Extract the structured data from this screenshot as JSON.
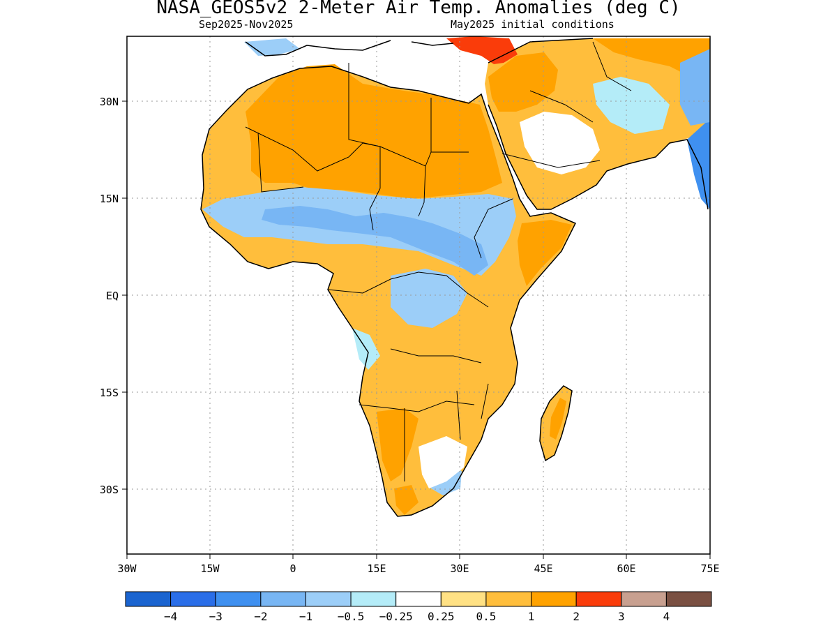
{
  "header": {
    "title": "NASA_GEOS5v2 2-Meter Air Temp. Anomalies (deg C)",
    "period": "Sep2025-Nov2025",
    "init": "May2025 initial conditions"
  },
  "map": {
    "lon_range": [
      -30,
      75
    ],
    "lat_range": [
      -40,
      40
    ],
    "lon_ticks": [
      "30W",
      "15W",
      "0",
      "15E",
      "30E",
      "45E",
      "60E",
      "75E"
    ],
    "lat_ticks": [
      "30N",
      "15N",
      "EQ",
      "15S",
      "30S"
    ],
    "grid": true,
    "colors": {
      "c_m4": "#1a64d0",
      "c_m3": "#2a6ee8",
      "c_m2": "#3f90f0",
      "c_m1": "#78b6f4",
      "c_m05": "#9ccef8",
      "c_m025": "#b4ecf8",
      "c_0": "#ffffff",
      "c_025": "#ffe184",
      "c_05": "#ffbe3c",
      "c_1": "#ffa200",
      "c_2": "#fa3c0a",
      "c_3": "#c8a090",
      "c_4": "#7a5042"
    }
  },
  "colorbar": {
    "colors": [
      "#1a64d0",
      "#2a6ee8",
      "#3f90f0",
      "#78b6f4",
      "#9ccef8",
      "#b4ecf8",
      "#ffffff",
      "#ffe184",
      "#ffbe3c",
      "#ffa200",
      "#fa3c0a",
      "#c8a090",
      "#7a5042"
    ],
    "labels": [
      "−4",
      "−3",
      "−2",
      "−1",
      "−0.5",
      "−0.25",
      "0.25",
      "0.5",
      "1",
      "2",
      "3",
      "4"
    ]
  }
}
